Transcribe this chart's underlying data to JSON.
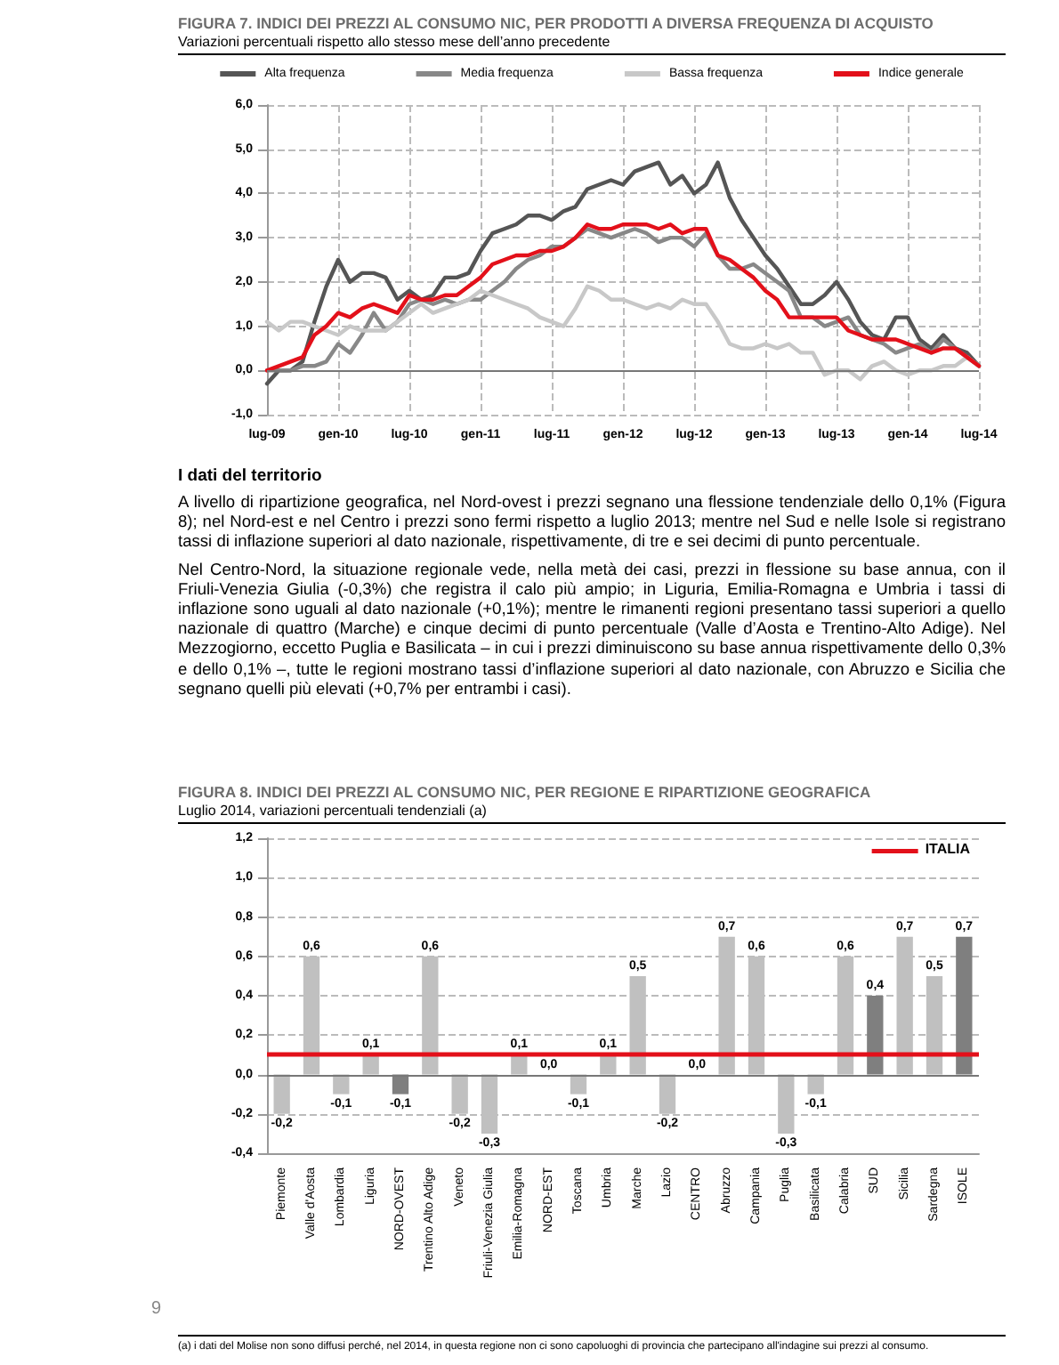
{
  "chart_data": [
    {
      "type": "line",
      "title": "FIGURA 7. INDICI DEI PREZZI AL CONSUMO NIC, PER PRODOTTI A DIVERSA FREQUENZA DI ACQUISTO",
      "subtitle": "Variazioni percentuali rispetto allo stesso mese dell’anno precedente",
      "categories": [
        "lug-09",
        null,
        null,
        null,
        null,
        null,
        "gen-10",
        null,
        null,
        null,
        null,
        null,
        "lug-10",
        null,
        null,
        null,
        null,
        null,
        "gen-11",
        null,
        null,
        null,
        null,
        null,
        "lug-11",
        null,
        null,
        null,
        null,
        null,
        "gen-12",
        null,
        null,
        null,
        null,
        null,
        "lug-12",
        null,
        null,
        null,
        null,
        null,
        "gen-13",
        null,
        null,
        null,
        null,
        null,
        "lug-13",
        null,
        null,
        null,
        null,
        null,
        "gen-14",
        null,
        null,
        null,
        null,
        null,
        "lug-14"
      ],
      "series": [
        {
          "name": "Alta frequenza",
          "color": "#555555",
          "values": [
            -0.3,
            0.0,
            0.0,
            0.2,
            1.1,
            1.9,
            2.5,
            2.0,
            2.2,
            2.2,
            2.1,
            1.6,
            1.8,
            1.6,
            1.7,
            2.1,
            2.1,
            2.2,
            2.7,
            3.1,
            3.2,
            3.3,
            3.5,
            3.5,
            3.4,
            3.6,
            3.7,
            4.1,
            4.2,
            4.3,
            4.2,
            4.5,
            4.6,
            4.7,
            4.2,
            4.4,
            4.0,
            4.2,
            4.7,
            3.9,
            3.4,
            3.0,
            2.6,
            2.3,
            1.9,
            1.5,
            1.5,
            1.7,
            2.0,
            1.6,
            1.1,
            0.8,
            0.7,
            1.2,
            1.2,
            0.7,
            0.5,
            0.8,
            0.5,
            0.4,
            0.1
          ]
        },
        {
          "name": "Media frequenza",
          "color": "#888888",
          "values": [
            0.0,
            0.0,
            0.0,
            0.1,
            0.1,
            0.2,
            0.6,
            0.4,
            0.8,
            1.3,
            0.9,
            1.1,
            1.5,
            1.6,
            1.5,
            1.6,
            1.5,
            1.6,
            1.6,
            1.8,
            2.0,
            2.3,
            2.5,
            2.6,
            2.8,
            2.8,
            3.0,
            3.2,
            3.1,
            3.0,
            3.1,
            3.2,
            3.1,
            2.9,
            3.0,
            3.0,
            2.8,
            3.1,
            2.6,
            2.3,
            2.3,
            2.4,
            2.2,
            2.0,
            1.8,
            1.2,
            1.2,
            1.0,
            1.1,
            1.2,
            0.8,
            0.7,
            0.6,
            0.4,
            0.5,
            0.6,
            0.4,
            0.7,
            0.5,
            0.3,
            0.1
          ]
        },
        {
          "name": "Bassa frequenza",
          "color": "#c8c8c8",
          "values": [
            1.1,
            0.9,
            1.1,
            1.1,
            1.0,
            0.9,
            0.8,
            1.0,
            0.9,
            0.9,
            0.9,
            1.1,
            1.3,
            1.5,
            1.3,
            1.4,
            1.5,
            1.6,
            1.8,
            1.7,
            1.6,
            1.5,
            1.4,
            1.2,
            1.1,
            1.0,
            1.4,
            1.9,
            1.8,
            1.6,
            1.6,
            1.5,
            1.4,
            1.5,
            1.4,
            1.6,
            1.5,
            1.5,
            1.1,
            0.6,
            0.5,
            0.5,
            0.6,
            0.5,
            0.6,
            0.4,
            0.4,
            -0.1,
            0.0,
            0.0,
            -0.2,
            0.1,
            0.2,
            0.0,
            -0.1,
            0.0,
            0.0,
            0.1,
            0.1,
            0.3,
            0.1
          ]
        },
        {
          "name": "Indice generale",
          "color": "#e3101a",
          "values": [
            0.0,
            0.1,
            0.2,
            0.3,
            0.8,
            1.0,
            1.3,
            1.2,
            1.4,
            1.5,
            1.4,
            1.3,
            1.7,
            1.6,
            1.6,
            1.7,
            1.7,
            1.9,
            2.1,
            2.4,
            2.5,
            2.6,
            2.6,
            2.7,
            2.7,
            2.8,
            3.0,
            3.3,
            3.2,
            3.2,
            3.3,
            3.3,
            3.3,
            3.2,
            3.3,
            3.1,
            3.2,
            3.2,
            2.6,
            2.5,
            2.3,
            2.1,
            1.8,
            1.6,
            1.2,
            1.2,
            1.2,
            1.2,
            1.2,
            0.9,
            0.8,
            0.7,
            0.7,
            0.7,
            0.6,
            0.5,
            0.4,
            0.5,
            0.5,
            0.3,
            0.1
          ]
        }
      ],
      "ylim": [
        -1,
        6
      ],
      "yticks": [
        {
          "value": -1,
          "label": "-1,0"
        },
        {
          "value": 0,
          "label": "0,0"
        },
        {
          "value": 1,
          "label": "1,0"
        },
        {
          "value": 2,
          "label": "2,0"
        },
        {
          "value": 3,
          "label": "3,0"
        },
        {
          "value": 4,
          "label": "4,0"
        },
        {
          "value": 5,
          "label": "5,0"
        },
        {
          "value": 6,
          "label": "6,0"
        }
      ],
      "grid": true,
      "legend": "top",
      "marker": "none",
      "line_style": "solid"
    },
    {
      "type": "other",
      "title": "I dati del territorio",
      "annotations": [
        "A livello di ripartizione geografica, nel Nord-ovest i prezzi segnano una flessione tendenziale dello 0,1% (Figura 8); nel Nord-est e nel Centro i prezzi sono fermi rispetto a luglio 2013; mentre nel Sud e nelle Isole si registrano tassi di inflazione superiori al dato nazionale, rispettivamente, di tre e sei decimi di punto percentuale.",
        "Nel Centro-Nord, la situazione regionale vede, nella metà dei casi, prezzi in flessione su base annua, con il Friuli-Venezia Giulia (-0,3%) che registra il calo più ampio; in Liguria, Emilia-Romagna e Umbria i tassi di inflazione sono uguali al dato nazionale (+0,1%); mentre le rimanenti regioni presentano tassi superiori a quello nazionale di quattro (Marche) e cinque decimi di punto percentuale (Valle d’Aosta e Trentino-Alto Adige). Nel Mezzogiorno, eccetto Puglia e Basilicata – in cui i prezzi diminuiscono su base annua rispettivamente dello 0,3% e dello 0,1% –, tutte le regioni mostrano tassi d’inflazione superiori al dato nazionale, con Abruzzo e Sicilia che segnano quelli più elevati (+0,7% per entrambi i casi).",
        "9"
      ]
    },
    {
      "type": "bar",
      "title": "FIGURA 8. INDICI DEI PREZZI AL CONSUMO NIC, PER REGIONE E RIPARTIZIONE GEOGRAFICA",
      "subtitle": "Luglio 2014, variazioni percentuali tendenziali (a)",
      "categories": [
        "Piemonte",
        "Valle d'Aosta",
        "Lombardia",
        "Liguria",
        "NORD-OVEST",
        "Trentino Alto Adige",
        "Veneto",
        "Friuli-Venezia Giulia",
        "Emilia-Romagna",
        "NORD-EST",
        "Toscana",
        "Umbria",
        "Marche",
        "Lazio",
        "CENTRO",
        "Abruzzo",
        "Campania",
        "Puglia",
        "Basilicata",
        "Calabria",
        "SUD",
        "Sicilia",
        "Sardegna",
        "ISOLE"
      ],
      "values": [
        -0.2,
        0.6,
        -0.1,
        0.1,
        -0.1,
        0.6,
        -0.2,
        -0.3,
        0.1,
        0.0,
        -0.1,
        0.1,
        0.5,
        -0.2,
        0.0,
        0.7,
        0.6,
        -0.3,
        -0.1,
        0.6,
        0.4,
        0.7,
        0.5,
        0.7
      ],
      "value_labels": [
        "-0,2",
        "0,6",
        "-0,1",
        "0,1",
        "-0,1",
        "0,6",
        "-0,2",
        "-0,3",
        "0,1",
        "0,0",
        "-0,1",
        "0,1",
        "0,5",
        "-0,2",
        "0,0",
        "0,7",
        "0,6",
        "-0,3",
        "-0,1",
        "0,6",
        "0,4",
        "0,7",
        "0,5",
        "0,7"
      ],
      "colors": [
        "#c0c0c0",
        "#c0c0c0",
        "#c0c0c0",
        "#c0c0c0",
        "#7f7f7f",
        "#c0c0c0",
        "#c0c0c0",
        "#c0c0c0",
        "#c0c0c0",
        "#7f7f7f",
        "#c0c0c0",
        "#c0c0c0",
        "#c0c0c0",
        "#c0c0c0",
        "#7f7f7f",
        "#c0c0c0",
        "#c0c0c0",
        "#c0c0c0",
        "#c0c0c0",
        "#c0c0c0",
        "#7f7f7f",
        "#c0c0c0",
        "#c0c0c0",
        "#7f7f7f"
      ],
      "ylim": [
        -0.4,
        1.2
      ],
      "yticks": [
        {
          "value": -0.4,
          "label": "-0,4"
        },
        {
          "value": -0.2,
          "label": "-0,2"
        },
        {
          "value": 0,
          "label": "0,0"
        },
        {
          "value": 0.2,
          "label": "0,2"
        },
        {
          "value": 0.4,
          "label": "0,4"
        },
        {
          "value": 0.6,
          "label": "0,6"
        },
        {
          "value": 0.8,
          "label": "0,8"
        },
        {
          "value": 1.0,
          "label": "1,0"
        },
        {
          "value": 1.2,
          "label": "1,2"
        }
      ],
      "ref_lines": [
        {
          "axis": "y",
          "value": 0.1,
          "label": "ITALIA",
          "color": "#e3101a"
        }
      ],
      "grid": "y",
      "annotations": [
        "(a) i dati del Molise non sono diffusi perché, nel 2014, in questa regione non ci sono capoluoghi di provincia che partecipano all'indagine sui prezzi al consumo."
      ]
    }
  ]
}
